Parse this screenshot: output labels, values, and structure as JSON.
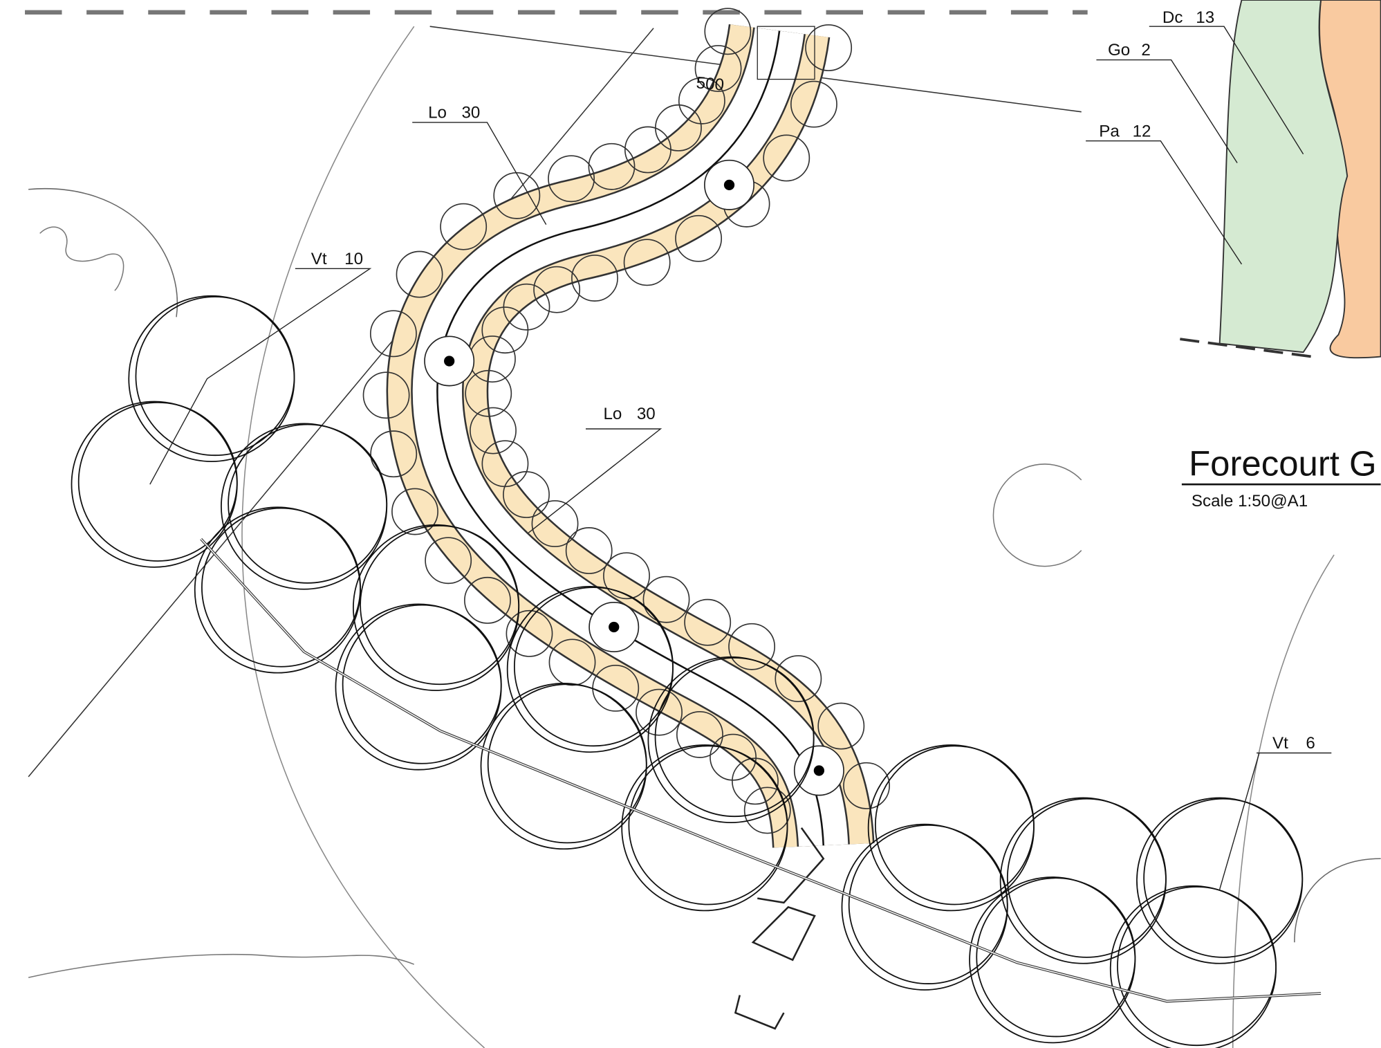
{
  "labels": [
    {
      "code": "Dc",
      "qty": 13
    },
    {
      "code": "Go",
      "qty": 2
    },
    {
      "code": "Pa",
      "qty": 12
    },
    {
      "code": "Lo",
      "qty": 30
    },
    {
      "code": "Vt",
      "qty": 10
    },
    {
      "code": "Lo",
      "qty": 30
    },
    {
      "code": "Vt",
      "qty": 6
    }
  ],
  "dimension": "500",
  "title_block": {
    "title": "Forecourt G",
    "scale": "Scale 1:50@A1"
  }
}
